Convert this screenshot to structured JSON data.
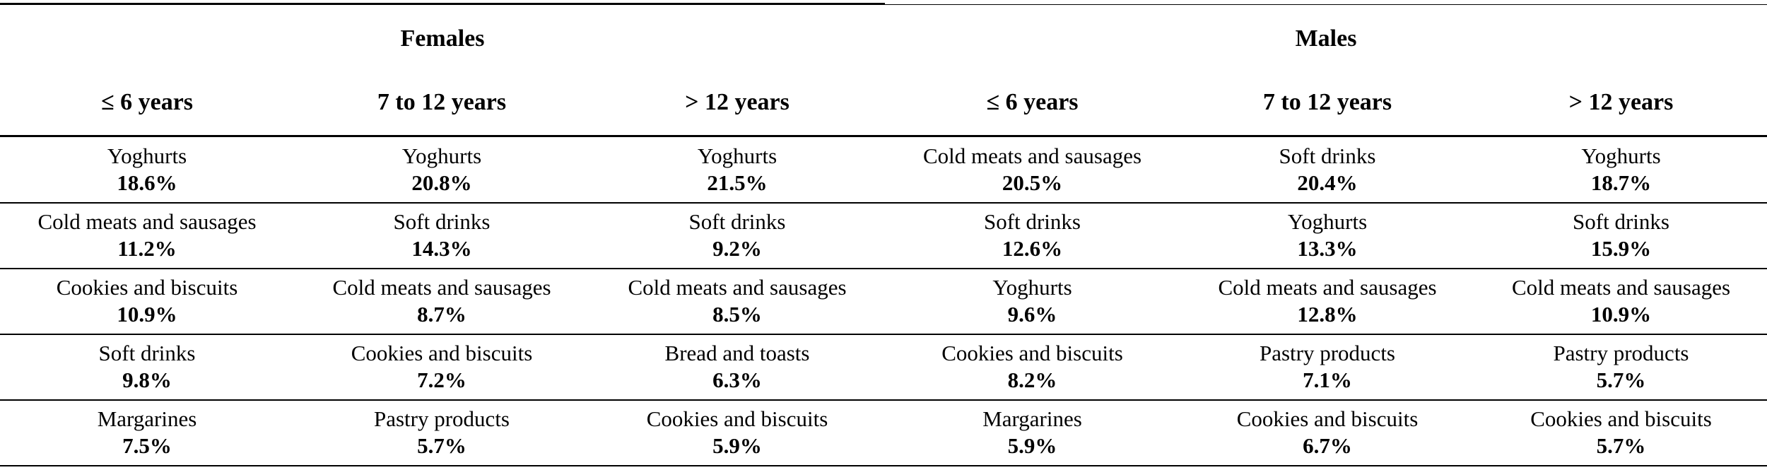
{
  "groups": [
    {
      "title": "Females"
    },
    {
      "title": "Males"
    }
  ],
  "age_headers": [
    "≤ 6 years",
    "7 to 12 years",
    "> 12 years",
    "≤ 6 years",
    "7 to 12 years",
    "> 12 years"
  ],
  "rows": [
    [
      {
        "food": "Yoghurts",
        "pct": "18.6%"
      },
      {
        "food": "Yoghurts",
        "pct": "20.8%"
      },
      {
        "food": "Yoghurts",
        "pct": "21.5%"
      },
      {
        "food": "Cold meats and sausages",
        "pct": "20.5%"
      },
      {
        "food": "Soft drinks",
        "pct": "20.4%"
      },
      {
        "food": "Yoghurts",
        "pct": "18.7%"
      }
    ],
    [
      {
        "food": "Cold meats and sausages",
        "pct": "11.2%"
      },
      {
        "food": "Soft drinks",
        "pct": "14.3%"
      },
      {
        "food": "Soft drinks",
        "pct": "9.2%"
      },
      {
        "food": "Soft drinks",
        "pct": "12.6%"
      },
      {
        "food": "Yoghurts",
        "pct": "13.3%"
      },
      {
        "food": "Soft drinks",
        "pct": "15.9%"
      }
    ],
    [
      {
        "food": "Cookies and biscuits",
        "pct": "10.9%"
      },
      {
        "food": "Cold meats and sausages",
        "pct": "8.7%"
      },
      {
        "food": "Cold meats and sausages",
        "pct": "8.5%"
      },
      {
        "food": "Yoghurts",
        "pct": "9.6%"
      },
      {
        "food": "Cold meats and sausages",
        "pct": "12.8%"
      },
      {
        "food": "Cold meats and sausages",
        "pct": "10.9%"
      }
    ],
    [
      {
        "food": "Soft drinks",
        "pct": "9.8%"
      },
      {
        "food": "Cookies and biscuits",
        "pct": "7.2%"
      },
      {
        "food": "Bread and toasts",
        "pct": "6.3%"
      },
      {
        "food": "Cookies and biscuits",
        "pct": "8.2%"
      },
      {
        "food": "Pastry products",
        "pct": "7.1%"
      },
      {
        "food": "Pastry products",
        "pct": "5.7%"
      }
    ],
    [
      {
        "food": "Margarines",
        "pct": "7.5%"
      },
      {
        "food": "Pastry products",
        "pct": "5.7%"
      },
      {
        "food": "Cookies and biscuits",
        "pct": "5.9%"
      },
      {
        "food": "Margarines",
        "pct": "5.9%"
      },
      {
        "food": "Cookies and biscuits",
        "pct": "6.7%"
      },
      {
        "food": "Cookies and biscuits",
        "pct": "5.7%"
      }
    ]
  ]
}
